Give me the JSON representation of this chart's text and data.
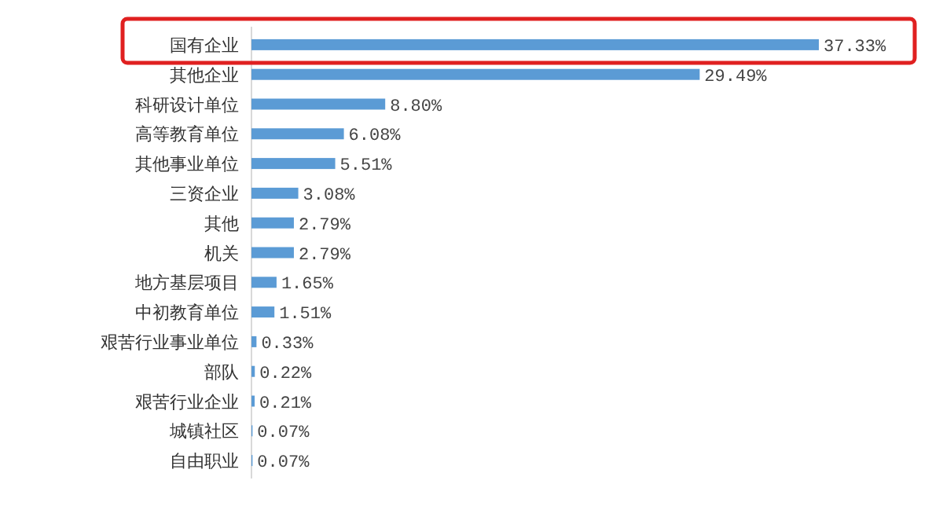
{
  "chart_data": {
    "type": "bar",
    "orientation": "horizontal",
    "categories": [
      "国有企业",
      "其他企业",
      "科研设计单位",
      "高等教育单位",
      "其他事业单位",
      "三资企业",
      "其他",
      "机关",
      "地方基层项目",
      "中初教育单位",
      "艰苦行业事业单位",
      "部队",
      "艰苦行业企业",
      "城镇社区",
      "自由职业"
    ],
    "values": [
      37.33,
      29.49,
      8.8,
      6.08,
      5.51,
      3.08,
      2.79,
      2.79,
      1.65,
      1.51,
      0.33,
      0.22,
      0.21,
      0.07,
      0.07
    ],
    "value_labels": [
      "37.33%",
      "29.49%",
      "8.80%",
      "6.08%",
      "5.51%",
      "3.08%",
      "2.79%",
      "2.79%",
      "1.65%",
      "1.51%",
      "0.33%",
      "0.22%",
      "0.21%",
      "0.07%",
      "0.07%"
    ],
    "color": "#5b9bd5",
    "grid": false
  }
}
